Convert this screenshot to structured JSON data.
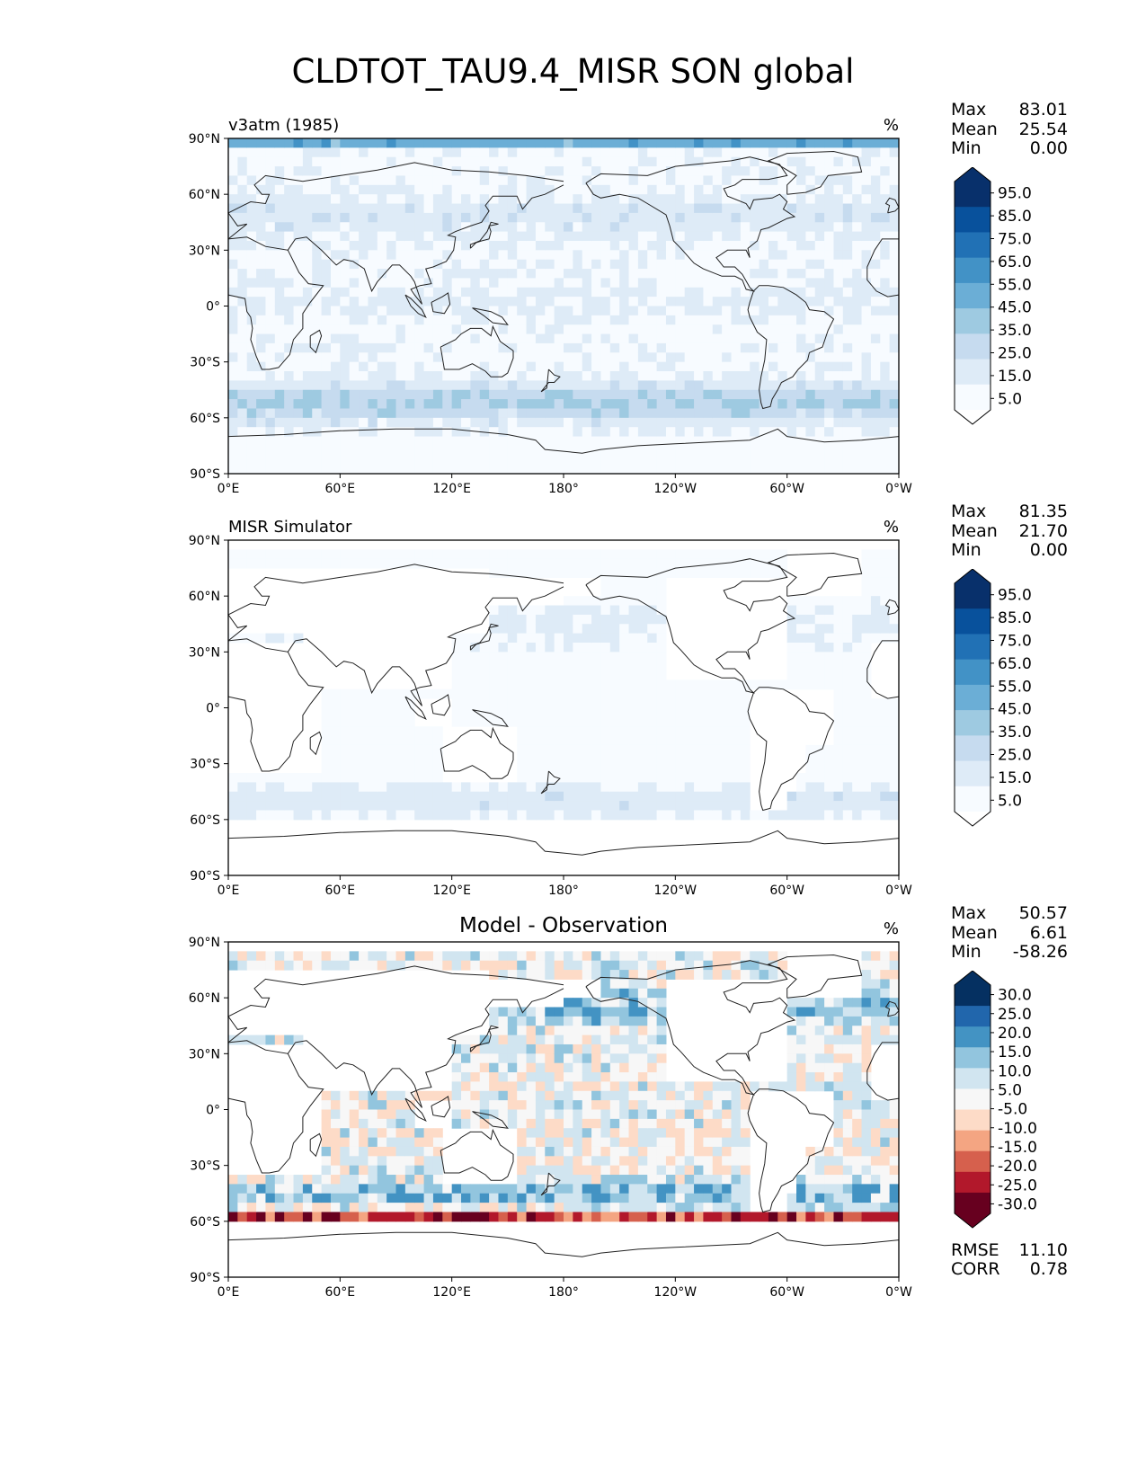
{
  "title": "CLDTOT_TAU9.4_MISR SON global",
  "lat_ticks": [
    "90°N",
    "60°N",
    "30°N",
    "0°",
    "30°S",
    "60°S",
    "90°S"
  ],
  "lon_ticks": [
    "0°E",
    "60°E",
    "120°E",
    "180°",
    "120°W",
    "60°W",
    "0°W"
  ],
  "panels": [
    {
      "name": "test",
      "title_left": "v3atm (1985)",
      "title_center": "",
      "units": "%",
      "stats": [
        {
          "label": "Max",
          "value": "83.01"
        },
        {
          "label": "Mean",
          "value": "25.54"
        },
        {
          "label": "Min",
          "value": "0.00"
        }
      ],
      "colorbar": {
        "labels": [
          "95.0",
          "85.0",
          "75.0",
          "65.0",
          "55.0",
          "45.0",
          "35.0",
          "25.0",
          "15.0",
          "5.0"
        ],
        "colors": [
          "#08306b",
          "#08519c",
          "#2171b5",
          "#4292c6",
          "#6baed6",
          "#9ecae1",
          "#c6dbef",
          "#deebf7",
          "#f7fbff"
        ]
      }
    },
    {
      "name": "reference",
      "title_left": "MISR Simulator",
      "title_center": "",
      "units": "%",
      "stats": [
        {
          "label": "Max",
          "value": "81.35"
        },
        {
          "label": "Mean",
          "value": "21.70"
        },
        {
          "label": "Min",
          "value": "0.00"
        }
      ],
      "colorbar": {
        "labels": [
          "95.0",
          "85.0",
          "75.0",
          "65.0",
          "55.0",
          "45.0",
          "35.0",
          "25.0",
          "15.0",
          "5.0"
        ],
        "colors": [
          "#08306b",
          "#08519c",
          "#2171b5",
          "#4292c6",
          "#6baed6",
          "#9ecae1",
          "#c6dbef",
          "#deebf7",
          "#f7fbff"
        ]
      }
    },
    {
      "name": "difference",
      "title_left": "",
      "title_center": "Model - Observation",
      "units": "%",
      "stats": [
        {
          "label": "Max",
          "value": "50.57"
        },
        {
          "label": "Mean",
          "value": "6.61"
        },
        {
          "label": "Min",
          "value": "-58.26"
        }
      ],
      "metrics": [
        {
          "label": "RMSE",
          "value": "11.10"
        },
        {
          "label": "CORR",
          "value": "0.78"
        }
      ],
      "colorbar": {
        "labels": [
          "30.0",
          "25.0",
          "20.0",
          "15.0",
          "10.0",
          "5.0",
          "-5.0",
          "-10.0",
          "-15.0",
          "-20.0",
          "-25.0",
          "-30.0"
        ],
        "colors": [
          "#053061",
          "#2166ac",
          "#4393c3",
          "#92c5de",
          "#d1e5f0",
          "#f7f7f7",
          "#fddbc7",
          "#f4a582",
          "#d6604d",
          "#b2182b",
          "#67001f"
        ]
      }
    }
  ]
}
